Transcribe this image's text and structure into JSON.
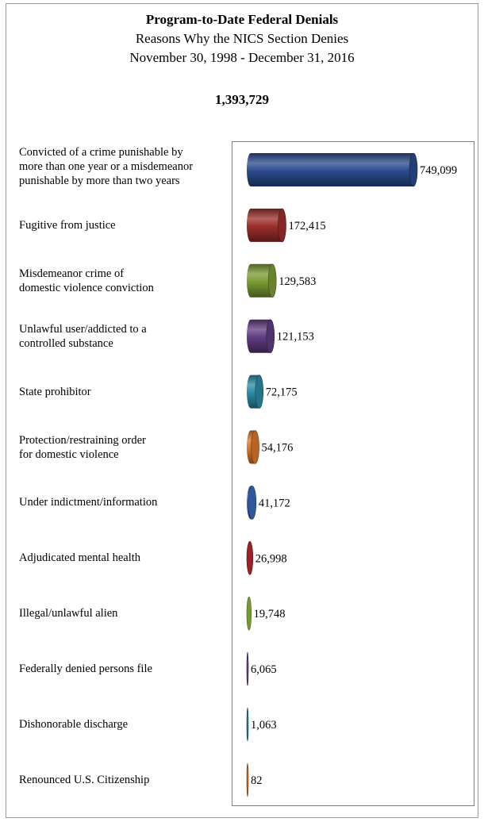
{
  "header": {
    "title": "Program-to-Date Federal Denials",
    "subtitle": "Reasons Why the NICS Section Denies",
    "date_range": "November 30, 1998 - December 31, 2016",
    "total": "1,393,729"
  },
  "chart_data": {
    "type": "bar",
    "orientation": "horizontal",
    "title": "Program-to-Date Federal Denials",
    "subtitle": "Reasons Why the NICS Section Denies",
    "categories": [
      "Convicted of a crime punishable by\nmore than one year or a misdemeanor\npunishable by more than two years",
      "Fugitive from justice",
      "Misdemeanor crime of\ndomestic violence conviction",
      "Unlawful user/addicted to a\ncontrolled substance",
      "State prohibitor",
      "Protection/restraining order\nfor domestic violence",
      "Under indictment/information",
      "Adjudicated mental health",
      "Illegal/unlawful alien",
      "Federally denied persons file",
      "Dishonorable discharge",
      "Renounced U.S. Citizenship"
    ],
    "values": [
      749099,
      172415,
      129583,
      121153,
      72175,
      54176,
      41172,
      26998,
      19748,
      6065,
      1063,
      82
    ],
    "value_labels": [
      "749,099",
      "172,415",
      "129,583",
      "121,153",
      "72,175",
      "54,176",
      "41,172",
      "26,998",
      "19,748",
      "6,065",
      "1,063",
      "82"
    ],
    "colors": [
      "#2a4a8c",
      "#9b2d2a",
      "#7a9a33",
      "#5e3b80",
      "#2b8aa2",
      "#d8752a",
      "#3a66b8",
      "#b5272c",
      "#8cb43a",
      "#6b4a93",
      "#2f8ba5",
      "#e07a2f"
    ],
    "xlim": [
      0,
      749099
    ],
    "grid": false,
    "legend": "none"
  }
}
